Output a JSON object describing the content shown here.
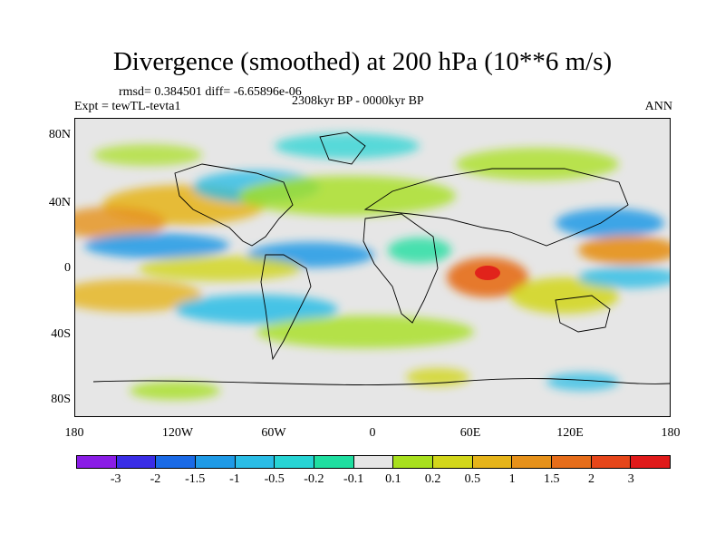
{
  "title": "Divergence (smoothed) at 200 hPa (10**6 m/s)",
  "stats": "rmsd= 0.384501 diff= -6.65896e-06",
  "experiment": "Expt = tewTL-tevta1",
  "period": "2308kyr BP - 0000kyr BP",
  "season": "ANN",
  "y_axis_labels": [
    "80N",
    "40N",
    "0",
    "40S",
    "80S"
  ],
  "x_axis_labels": [
    "180",
    "120W",
    "60W",
    "0",
    "60E",
    "120E",
    "180"
  ],
  "colorbar": {
    "colors": [
      "#8a1de6",
      "#3a2de6",
      "#1a6ae6",
      "#1f9ae6",
      "#2abde6",
      "#27d4d4",
      "#1fdea0",
      "#e6e6e6",
      "#a8e01e",
      "#d2d61a",
      "#e6b41a",
      "#e6911a",
      "#e66d1a",
      "#e6461a",
      "#e01a1a"
    ],
    "labels": [
      "-3",
      "-2",
      "-1.5",
      "-1",
      "-0.5",
      "-0.2",
      "-0.1",
      "0.1",
      "0.2",
      "0.5",
      "1",
      "1.5",
      "2",
      "3"
    ]
  },
  "chart_data": {
    "type": "heatmap",
    "title": "Divergence (smoothed) at 200 hPa (10**6 m/s)",
    "variable": "200 hPa divergence difference",
    "units": "10**6 m/s",
    "xlim": [
      -180,
      180
    ],
    "ylim": [
      -90,
      90
    ],
    "x_ticks": [
      -180,
      -120,
      -60,
      0,
      60,
      120,
      180
    ],
    "y_ticks": [
      80,
      40,
      0,
      -40,
      -80
    ],
    "levels": [
      -3,
      -2,
      -1.5,
      -1,
      -0.5,
      -0.2,
      -0.1,
      0.1,
      0.2,
      0.5,
      1,
      1.5,
      2,
      3
    ],
    "features": [
      {
        "name": "indian-ocean-max",
        "lon": 65,
        "lat": 0,
        "value": 2.5
      },
      {
        "name": "west-pacific-max",
        "lon": 150,
        "lat": 10,
        "value": 1.5
      },
      {
        "name": "west-pacific-min",
        "lon": 135,
        "lat": 25,
        "value": -1.5
      },
      {
        "name": "atlantic-min",
        "lon": -40,
        "lat": 10,
        "value": -0.5
      }
    ]
  }
}
